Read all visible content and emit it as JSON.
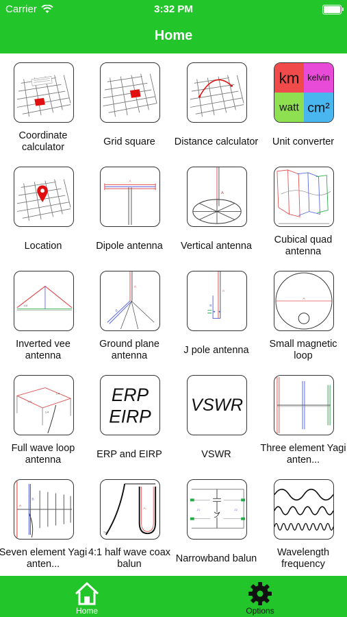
{
  "status": {
    "carrier": "Carrier",
    "time": "3:32 PM"
  },
  "nav": {
    "title": "Home"
  },
  "tiles": [
    {
      "label": "Coordinate calculator",
      "icon": "coordinate-grid-icon"
    },
    {
      "label": "Grid square",
      "icon": "grid-square-icon"
    },
    {
      "label": "Distance calculator",
      "icon": "distance-arc-icon"
    },
    {
      "label": "Unit converter",
      "icon": "unit-converter-icon",
      "units": [
        "km",
        "kelvin",
        "watt",
        "cm²"
      ]
    },
    {
      "label": "Location",
      "icon": "location-pin-icon"
    },
    {
      "label": "Dipole antenna",
      "icon": "dipole-antenna-icon"
    },
    {
      "label": "Vertical antenna",
      "icon": "vertical-antenna-icon"
    },
    {
      "label": "Cubical quad antenna",
      "icon": "cubical-quad-icon"
    },
    {
      "label": "Inverted vee antenna",
      "icon": "inverted-vee-icon"
    },
    {
      "label": "Ground plane antenna",
      "icon": "ground-plane-icon"
    },
    {
      "label": "J pole antenna",
      "icon": "j-pole-icon"
    },
    {
      "label": "Small magnetic loop",
      "icon": "magnetic-loop-icon"
    },
    {
      "label": "Full wave loop antenna",
      "icon": "full-wave-loop-icon"
    },
    {
      "label": "ERP and EIRP",
      "icon": "erp-eirp-icon",
      "text": [
        "ERP",
        "EIRP"
      ]
    },
    {
      "label": "VSWR",
      "icon": "vswr-icon",
      "text": [
        "VSWR"
      ]
    },
    {
      "label": "Three element Yagi anten...",
      "icon": "three-element-yagi-icon"
    },
    {
      "label": "Seven element Yagi anten...",
      "icon": "seven-element-yagi-icon"
    },
    {
      "label": "4:1 half wave coax balun",
      "icon": "coax-balun-icon"
    },
    {
      "label": "Narrowband balun",
      "icon": "narrowband-balun-icon"
    },
    {
      "label": "Wavelength frequency",
      "icon": "wavelength-waves-icon"
    }
  ],
  "tabs": [
    {
      "label": "Home",
      "icon": "home-icon"
    },
    {
      "label": "Options",
      "icon": "gear-icon"
    }
  ],
  "colors": {
    "accent": "#22c62a",
    "unit_km": "#f04a4a",
    "unit_kelvin": "#e84bd8",
    "unit_watt": "#8ee050",
    "unit_cm2": "#49b6f0"
  }
}
